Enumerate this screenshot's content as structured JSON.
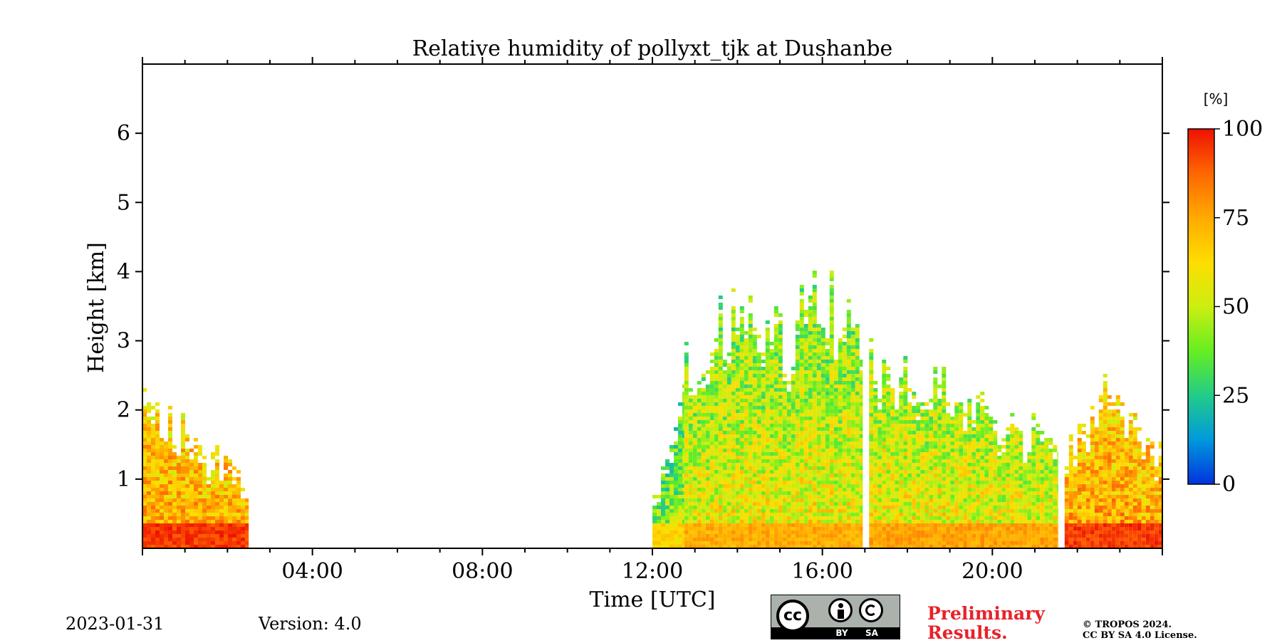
{
  "chart_data": {
    "type": "heatmap",
    "title": "Relative humidity of pollyxt_tjk at Dushanbe",
    "xlabel": "Time [UTC]",
    "ylabel": "Height [km]",
    "xlim_hours": [
      0,
      24
    ],
    "ylim_km": [
      0,
      7
    ],
    "x_tick_labels": [
      {
        "hour": 4,
        "label": "04:00"
      },
      {
        "hour": 8,
        "label": "08:00"
      },
      {
        "hour": 12,
        "label": "12:00"
      },
      {
        "hour": 16,
        "label": "16:00"
      },
      {
        "hour": 20,
        "label": "20:00"
      }
    ],
    "y_tick_labels": [
      {
        "km": 1,
        "label": "1"
      },
      {
        "km": 2,
        "label": "2"
      },
      {
        "km": 3,
        "label": "3"
      },
      {
        "km": 4,
        "label": "4"
      },
      {
        "km": 5,
        "label": "5"
      },
      {
        "km": 6,
        "label": "6"
      }
    ],
    "colorbar": {
      "unit_label": "[%]",
      "range": [
        0,
        100
      ],
      "ticks": [
        {
          "value": 0,
          "label": "0"
        },
        {
          "value": 25,
          "label": "25"
        },
        {
          "value": 50,
          "label": "50"
        },
        {
          "value": 75,
          "label": "75"
        },
        {
          "value": 100,
          "label": "100"
        }
      ],
      "colormap": [
        "#0033dd",
        "#0099dd",
        "#22cc88",
        "#66ee22",
        "#ccee11",
        "#ffdd00",
        "#ffaa00",
        "#ff6600",
        "#ee1100"
      ]
    },
    "data_segments": [
      {
        "start_hour": 0.0,
        "end_hour": 2.5,
        "top_km": [
          2.2,
          2.0,
          1.75,
          1.4,
          1.2,
          0.9
        ],
        "mean_rh": 70
      },
      {
        "start_hour": 12.0,
        "end_hour": 12.75,
        "top_km": [
          0.8,
          1.1,
          1.6,
          2.3
        ],
        "mean_rh": 40
      },
      {
        "start_hour": 12.75,
        "end_hour": 16.95,
        "top_km": [
          2.6,
          3.1,
          3.3,
          3.2,
          3.0,
          3.6,
          3.4,
          2.8
        ],
        "mean_rh": 50
      },
      {
        "start_hour": 17.1,
        "end_hour": 21.55,
        "top_km": [
          2.8,
          2.6,
          2.5,
          2.2,
          2.0,
          1.8,
          1.7,
          1.5
        ],
        "mean_rh": 52
      },
      {
        "start_hour": 21.7,
        "end_hour": 24.0,
        "top_km": [
          1.5,
          1.8,
          2.3,
          2.0,
          1.6,
          1.4
        ],
        "mean_rh": 70
      }
    ]
  },
  "footer": {
    "date": "2023-01-31",
    "version": "Version: 4.0",
    "preliminary_line1": "Preliminary",
    "preliminary_line2": "Results.",
    "copyright_line1": "© TROPOS 2024.",
    "copyright_line2": "CC BY SA 4.0 License.",
    "license_badge_cc": "cc",
    "license_badge_by": "BY",
    "license_badge_sa": "SA",
    "preliminary_color": "#e8222a"
  }
}
